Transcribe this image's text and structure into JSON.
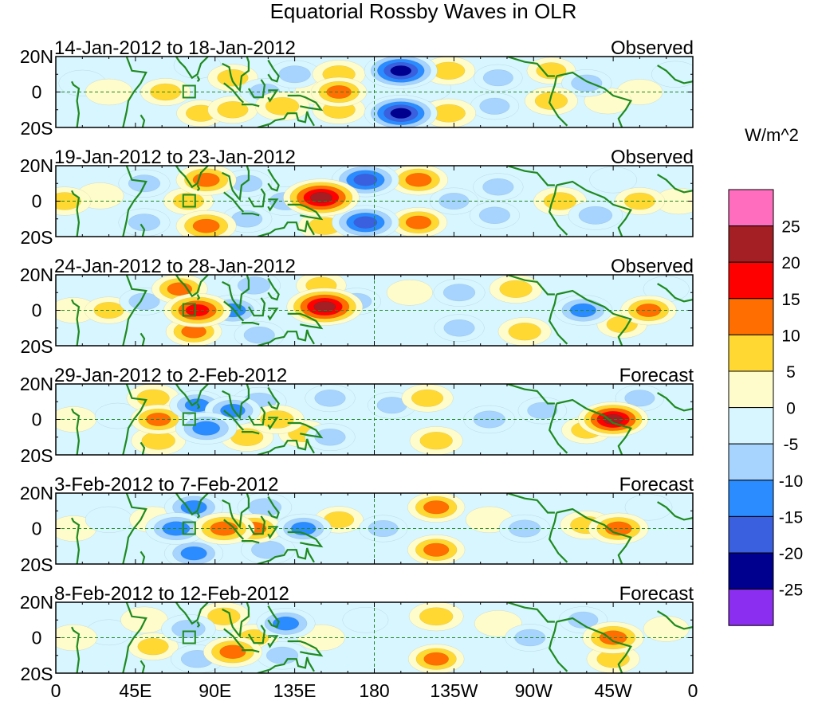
{
  "chart_data": {
    "type": "heatmap",
    "title": "Equatorial Rossby Waves in OLR",
    "units": "W/m^2",
    "x_tick_labels": [
      "0",
      "45E",
      "90E",
      "135E",
      "180",
      "135W",
      "90W",
      "45W",
      "0"
    ],
    "x_range_deg_east": [
      0,
      360
    ],
    "y_tick_labels": [
      "20N",
      "0",
      "20S"
    ],
    "y_range_deg": [
      -20,
      20
    ],
    "colorbar": {
      "tick_labels": [
        "25",
        "20",
        "15",
        "10",
        "5",
        "0",
        "-5",
        "-10",
        "-15",
        "-20",
        "-25"
      ],
      "bins": [
        {
          "range": "> 25",
          "color": "#ff6ebe"
        },
        {
          "range": "20 to 25",
          "color": "#a31f23"
        },
        {
          "range": "15 to 20",
          "color": "#ff0000"
        },
        {
          "range": "10 to 15",
          "color": "#ff6e00"
        },
        {
          "range": "5 to 10",
          "color": "#ffd932"
        },
        {
          "range": "0 to 5",
          "color": "#fffccc"
        },
        {
          "range": "-5 to 0",
          "color": "#d7f6ff"
        },
        {
          "range": "-10 to -5",
          "color": "#a6d4ff"
        },
        {
          "range": "-15 to -10",
          "color": "#2b8cff"
        },
        {
          "range": "-20 to -15",
          "color": "#3a60e0"
        },
        {
          "range": "-25 to -20",
          "color": "#00008f"
        },
        {
          "range": "< -25",
          "color": "#8c2ef0"
        }
      ]
    },
    "panels": [
      {
        "period": "14-Jan-2012 to 18-Jan-2012",
        "status": "Observed",
        "blobs": [
          {
            "lon": 15,
            "lat": 5,
            "val": -4
          },
          {
            "lon": 30,
            "lat": 0,
            "val": 4
          },
          {
            "lon": 62,
            "lat": 0,
            "val": 6
          },
          {
            "lon": 80,
            "lat": 15,
            "val": -4
          },
          {
            "lon": 82,
            "lat": -12,
            "val": 5
          },
          {
            "lon": 100,
            "lat": 8,
            "val": 6
          },
          {
            "lon": 100,
            "lat": -10,
            "val": 6
          },
          {
            "lon": 118,
            "lat": 0,
            "val": -6
          },
          {
            "lon": 128,
            "lat": -8,
            "val": 9
          },
          {
            "lon": 135,
            "lat": 10,
            "val": -7
          },
          {
            "lon": 148,
            "lat": 0,
            "val": 3
          },
          {
            "lon": 160,
            "lat": 10,
            "val": 8
          },
          {
            "lon": 160,
            "lat": 0,
            "val": 10
          },
          {
            "lon": 160,
            "lat": -10,
            "val": 8
          },
          {
            "lon": 195,
            "lat": 12,
            "val": -22
          },
          {
            "lon": 195,
            "lat": -12,
            "val": -22
          },
          {
            "lon": 210,
            "lat": 2,
            "val": -4
          },
          {
            "lon": 222,
            "lat": 12,
            "val": 8
          },
          {
            "lon": 222,
            "lat": -12,
            "val": 9
          },
          {
            "lon": 250,
            "lat": 8,
            "val": -5
          },
          {
            "lon": 248,
            "lat": -8,
            "val": -5
          },
          {
            "lon": 280,
            "lat": 12,
            "val": 5
          },
          {
            "lon": 280,
            "lat": -5,
            "val": 8
          },
          {
            "lon": 300,
            "lat": 5,
            "val": -6
          },
          {
            "lon": 312,
            "lat": -5,
            "val": 4
          },
          {
            "lon": 330,
            "lat": 0,
            "val": 3
          },
          {
            "lon": 350,
            "lat": 10,
            "val": -4
          }
        ]
      },
      {
        "period": "19-Jan-2012 to 23-Jan-2012",
        "status": "Observed",
        "blobs": [
          {
            "lon": 5,
            "lat": 0,
            "val": 8
          },
          {
            "lon": 25,
            "lat": 3,
            "val": 4
          },
          {
            "lon": 50,
            "lat": 10,
            "val": -7
          },
          {
            "lon": 50,
            "lat": -12,
            "val": -7
          },
          {
            "lon": 75,
            "lat": 0,
            "val": 6
          },
          {
            "lon": 85,
            "lat": 12,
            "val": 13
          },
          {
            "lon": 85,
            "lat": -14,
            "val": 13
          },
          {
            "lon": 108,
            "lat": 10,
            "val": -6
          },
          {
            "lon": 108,
            "lat": -10,
            "val": -6
          },
          {
            "lon": 130,
            "lat": 0,
            "val": -9
          },
          {
            "lon": 150,
            "lat": 2,
            "val": 24
          },
          {
            "lon": 152,
            "lat": -14,
            "val": 8
          },
          {
            "lon": 175,
            "lat": 12,
            "val": -18
          },
          {
            "lon": 175,
            "lat": -12,
            "val": -18
          },
          {
            "lon": 205,
            "lat": 12,
            "val": 12
          },
          {
            "lon": 205,
            "lat": -12,
            "val": 11
          },
          {
            "lon": 225,
            "lat": 0,
            "val": -5
          },
          {
            "lon": 250,
            "lat": 8,
            "val": -6
          },
          {
            "lon": 248,
            "lat": -8,
            "val": -6
          },
          {
            "lon": 285,
            "lat": 0,
            "val": 8
          },
          {
            "lon": 305,
            "lat": -8,
            "val": -9
          },
          {
            "lon": 315,
            "lat": 12,
            "val": -4
          },
          {
            "lon": 330,
            "lat": 0,
            "val": 6
          },
          {
            "lon": 352,
            "lat": 0,
            "val": 4
          }
        ]
      },
      {
        "period": "24-Jan-2012 to 28-Jan-2012",
        "status": "Observed",
        "blobs": [
          {
            "lon": 10,
            "lat": 0,
            "val": 3
          },
          {
            "lon": 30,
            "lat": 0,
            "val": 5
          },
          {
            "lon": 50,
            "lat": 5,
            "val": -6
          },
          {
            "lon": 70,
            "lat": 12,
            "val": 10
          },
          {
            "lon": 80,
            "lat": 0,
            "val": 18
          },
          {
            "lon": 78,
            "lat": -12,
            "val": 10
          },
          {
            "lon": 100,
            "lat": 0,
            "val": -12
          },
          {
            "lon": 112,
            "lat": 14,
            "val": -8
          },
          {
            "lon": 115,
            "lat": -14,
            "val": -6
          },
          {
            "lon": 152,
            "lat": 2,
            "val": 24
          },
          {
            "lon": 150,
            "lat": 14,
            "val": 6
          },
          {
            "lon": 170,
            "lat": 5,
            "val": -5
          },
          {
            "lon": 200,
            "lat": 10,
            "val": 3
          },
          {
            "lon": 228,
            "lat": 10,
            "val": -7
          },
          {
            "lon": 228,
            "lat": -10,
            "val": -6
          },
          {
            "lon": 260,
            "lat": 12,
            "val": 8
          },
          {
            "lon": 265,
            "lat": -12,
            "val": 8
          },
          {
            "lon": 298,
            "lat": 0,
            "val": -12
          },
          {
            "lon": 320,
            "lat": -8,
            "val": 6
          },
          {
            "lon": 335,
            "lat": 0,
            "val": 10
          },
          {
            "lon": 345,
            "lat": 12,
            "val": -3
          }
        ]
      },
      {
        "period": "29-Jan-2012 to 2-Feb-2012",
        "status": "Forecast",
        "blobs": [
          {
            "lon": 10,
            "lat": 0,
            "val": 3
          },
          {
            "lon": 35,
            "lat": 2,
            "val": -3
          },
          {
            "lon": 55,
            "lat": 12,
            "val": 8
          },
          {
            "lon": 58,
            "lat": 0,
            "val": 10
          },
          {
            "lon": 58,
            "lat": -12,
            "val": 9
          },
          {
            "lon": 80,
            "lat": 8,
            "val": -10
          },
          {
            "lon": 85,
            "lat": -5,
            "val": -14
          },
          {
            "lon": 100,
            "lat": 5,
            "val": -10
          },
          {
            "lon": 108,
            "lat": -10,
            "val": 8
          },
          {
            "lon": 115,
            "lat": 10,
            "val": -9
          },
          {
            "lon": 125,
            "lat": 0,
            "val": 9
          },
          {
            "lon": 140,
            "lat": -8,
            "val": 6
          },
          {
            "lon": 155,
            "lat": 12,
            "val": -6
          },
          {
            "lon": 155,
            "lat": -10,
            "val": -6
          },
          {
            "lon": 190,
            "lat": 8,
            "val": -5
          },
          {
            "lon": 210,
            "lat": 12,
            "val": 7
          },
          {
            "lon": 215,
            "lat": -12,
            "val": 8
          },
          {
            "lon": 245,
            "lat": 0,
            "val": -7
          },
          {
            "lon": 275,
            "lat": 5,
            "val": -5
          },
          {
            "lon": 300,
            "lat": -6,
            "val": 6
          },
          {
            "lon": 315,
            "lat": 0,
            "val": 20
          },
          {
            "lon": 330,
            "lat": 12,
            "val": -5
          }
        ]
      },
      {
        "period": "3-Feb-2012 to 7-Feb-2012",
        "status": "Forecast",
        "blobs": [
          {
            "lon": 10,
            "lat": 0,
            "val": 3
          },
          {
            "lon": 30,
            "lat": 5,
            "val": -4
          },
          {
            "lon": 55,
            "lat": 5,
            "val": 4
          },
          {
            "lon": 68,
            "lat": 0,
            "val": -14
          },
          {
            "lon": 78,
            "lat": 12,
            "val": -12
          },
          {
            "lon": 78,
            "lat": -14,
            "val": -12
          },
          {
            "lon": 95,
            "lat": 0,
            "val": 14
          },
          {
            "lon": 112,
            "lat": 0,
            "val": 10
          },
          {
            "lon": 118,
            "lat": 12,
            "val": -9
          },
          {
            "lon": 120,
            "lat": -12,
            "val": -9
          },
          {
            "lon": 140,
            "lat": 0,
            "val": -10
          },
          {
            "lon": 160,
            "lat": 5,
            "val": 5
          },
          {
            "lon": 185,
            "lat": 0,
            "val": -5
          },
          {
            "lon": 215,
            "lat": 12,
            "val": 11
          },
          {
            "lon": 215,
            "lat": -12,
            "val": 11
          },
          {
            "lon": 245,
            "lat": 5,
            "val": 4
          },
          {
            "lon": 265,
            "lat": 0,
            "val": -7
          },
          {
            "lon": 300,
            "lat": 2,
            "val": 8
          },
          {
            "lon": 318,
            "lat": 0,
            "val": 13
          },
          {
            "lon": 335,
            "lat": 12,
            "val": -4
          }
        ]
      },
      {
        "period": "8-Feb-2012 to 12-Feb-2012",
        "status": "Forecast",
        "blobs": [
          {
            "lon": 10,
            "lat": 0,
            "val": 4
          },
          {
            "lon": 30,
            "lat": 3,
            "val": -3
          },
          {
            "lon": 50,
            "lat": 10,
            "val": 4
          },
          {
            "lon": 55,
            "lat": -5,
            "val": 6
          },
          {
            "lon": 75,
            "lat": 5,
            "val": -9
          },
          {
            "lon": 80,
            "lat": -12,
            "val": -8
          },
          {
            "lon": 95,
            "lat": 12,
            "val": 8
          },
          {
            "lon": 100,
            "lat": -8,
            "val": 12
          },
          {
            "lon": 112,
            "lat": 0,
            "val": 5
          },
          {
            "lon": 130,
            "lat": 8,
            "val": -12
          },
          {
            "lon": 128,
            "lat": -10,
            "val": -7
          },
          {
            "lon": 150,
            "lat": 0,
            "val": 4
          },
          {
            "lon": 175,
            "lat": 10,
            "val": -3
          },
          {
            "lon": 215,
            "lat": 12,
            "val": 9
          },
          {
            "lon": 215,
            "lat": -12,
            "val": 10
          },
          {
            "lon": 250,
            "lat": 8,
            "val": 4
          },
          {
            "lon": 268,
            "lat": 0,
            "val": -6
          },
          {
            "lon": 298,
            "lat": 10,
            "val": -5
          },
          {
            "lon": 315,
            "lat": 0,
            "val": 14
          },
          {
            "lon": 315,
            "lat": -12,
            "val": 8
          },
          {
            "lon": 345,
            "lat": 5,
            "val": 3
          }
        ]
      }
    ]
  }
}
